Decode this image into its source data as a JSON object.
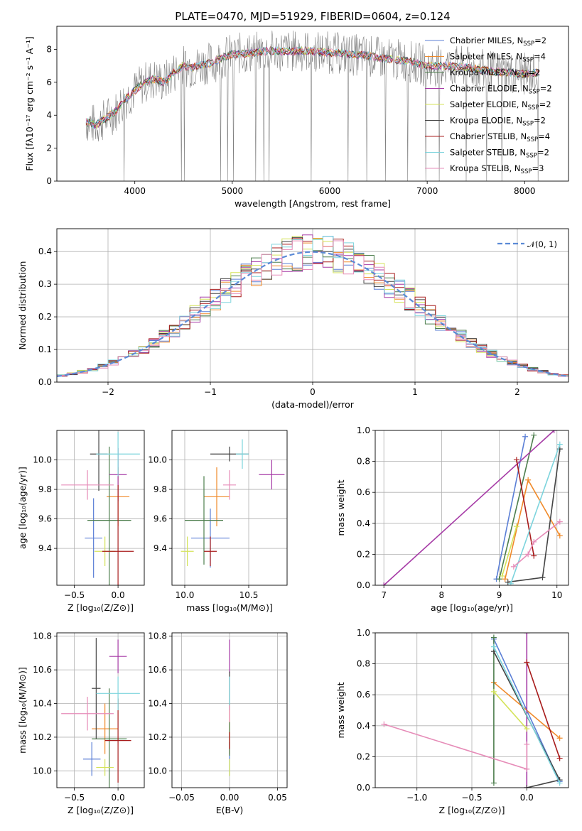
{
  "title": "PLATE=0470, MJD=51929, FIBERID=0604, z=0.124",
  "colors": [
    "#5b7fd6",
    "#f08a2a",
    "#4d7e4d",
    "#a63aa6",
    "#d4e35a",
    "#444444",
    "#a81c1c",
    "#7dd4dd",
    "#e68cb8"
  ],
  "chart_data": [
    {
      "id": "spectrum",
      "type": "line",
      "xlabel": "wavelength [Angstrom, rest frame]",
      "ylabel": "Flux [fλ10⁻¹⁷ erg cm⁻² s⁻¹ A⁻¹]",
      "xlim": [
        3200,
        8450
      ],
      "ylim": [
        0,
        9.4
      ],
      "xticks": [
        4000,
        5000,
        6000,
        7000,
        8000
      ],
      "yticks": [
        0,
        2,
        4,
        6,
        8
      ],
      "grid": false,
      "legend": "top-right",
      "legend_entries": [
        {
          "label": "Chabrier MILES, N",
          "sub": "SSP",
          "tail": "=2"
        },
        {
          "label": "Salpeter MILES, N",
          "sub": "SSP",
          "tail": "=4"
        },
        {
          "label": "Kroupa MILES, N",
          "sub": "SSP",
          "tail": "=2"
        },
        {
          "label": "Chabrier ELODIE, N",
          "sub": "SSP",
          "tail": "=2"
        },
        {
          "label": "Salpeter ELODIE, N",
          "sub": "SSP",
          "tail": "=2"
        },
        {
          "label": "Kroupa ELODIE, N",
          "sub": "SSP",
          "tail": "=2"
        },
        {
          "label": "Chabrier STELIB, N",
          "sub": "SSP",
          "tail": "=4"
        },
        {
          "label": "Salpeter STELIB, N",
          "sub": "SSP",
          "tail": "=2"
        },
        {
          "label": "Kroupa STELIB, N",
          "sub": "SSP",
          "tail": "=3"
        }
      ],
      "data_x": [
        3500,
        3600,
        3700,
        3800,
        3900,
        4000,
        4100,
        4200,
        4300,
        4400,
        4500,
        4600,
        4700,
        4800,
        4900,
        5000,
        5200,
        5400,
        5600,
        5800,
        6000,
        6200,
        6400,
        6600,
        6800,
        7000,
        7200,
        7400,
        7600,
        7800,
        8000,
        8150
      ],
      "data_y": [
        3.6,
        3.4,
        3.8,
        4.2,
        5.0,
        5.5,
        6.0,
        6.2,
        6.0,
        6.6,
        7.0,
        6.9,
        7.1,
        7.2,
        7.5,
        7.7,
        7.8,
        7.9,
        7.9,
        7.9,
        7.8,
        7.7,
        7.6,
        7.4,
        7.3,
        7.0,
        7.0,
        6.9,
        6.7,
        6.6,
        6.5,
        6.6
      ]
    },
    {
      "id": "residuals",
      "type": "histogram",
      "xlabel": "(data-model)/error",
      "ylabel": "Normed distribution",
      "xlim": [
        -2.5,
        2.5
      ],
      "ylim": [
        0,
        0.47
      ],
      "xticks": [
        -2,
        -1,
        0,
        1,
        2
      ],
      "yticks": [
        0.0,
        0.1,
        0.2,
        0.3,
        0.4
      ],
      "grid": true,
      "legend": "top-right",
      "curve_label": "𝒩(0, 1)",
      "bin_width": 0.1
    },
    {
      "id": "age-vs-Z",
      "type": "errorbar",
      "xlabel": "Z [log₁₀(Z/Z⊙)]",
      "ylabel": "age  [log₁₀(age/yr)]",
      "xlim": [
        -0.7,
        0.3
      ],
      "ylim": [
        9.15,
        10.2
      ],
      "xticks": [
        -0.5,
        0.0
      ],
      "yticks": [
        9.4,
        9.6,
        9.8,
        10.0
      ],
      "points": [
        {
          "x": -0.28,
          "xe": 0.1,
          "y": 9.47,
          "ye": 0.27
        },
        {
          "x": 0.0,
          "xe": 0.13,
          "y": 9.75,
          "ye": 0.2
        },
        {
          "x": -0.1,
          "xe": 0.25,
          "y": 9.59,
          "ye": 0.5
        },
        {
          "x": 0.0,
          "xe": 0.1,
          "y": 9.9,
          "ye": 0.18
        },
        {
          "x": -0.15,
          "xe": 0.12,
          "y": 9.38,
          "ye": 0.1
        },
        {
          "x": -0.22,
          "xe": 0.1,
          "y": 10.04,
          "ye": 0.25
        },
        {
          "x": 0.0,
          "xe": 0.18,
          "y": 9.38,
          "ye": 0.45
        },
        {
          "x": 0.0,
          "xe": 0.25,
          "y": 10.04,
          "ye": 0.15
        },
        {
          "x": -0.35,
          "xe": 0.3,
          "y": 9.83,
          "ye": 0.1
        }
      ]
    },
    {
      "id": "age-vs-mass",
      "type": "errorbar",
      "xlabel": "mass [log₁₀(M/M⊙)]",
      "ylabel": "",
      "xlim": [
        9.9,
        10.8
      ],
      "ylim": [
        9.15,
        10.2
      ],
      "xticks": [
        10.0,
        10.5
      ],
      "yticks": [
        9.4,
        9.6,
        9.8,
        10.0
      ],
      "points": [
        {
          "x": 10.2,
          "xe": 0.15,
          "y": 9.47,
          "ye": 0.2
        },
        {
          "x": 10.25,
          "xe": 0.1,
          "y": 9.75,
          "ye": 0.2
        },
        {
          "x": 10.15,
          "xe": 0.15,
          "y": 9.59,
          "ye": 0.3
        },
        {
          "x": 10.68,
          "xe": 0.1,
          "y": 9.9,
          "ye": 0.1
        },
        {
          "x": 10.02,
          "xe": 0.05,
          "y": 9.38,
          "ye": 0.1
        },
        {
          "x": 10.35,
          "xe": 0.15,
          "y": 10.04,
          "ye": 0.05
        },
        {
          "x": 10.2,
          "xe": 0.05,
          "y": 9.38,
          "ye": 0.1
        },
        {
          "x": 10.45,
          "xe": 0.05,
          "y": 10.04,
          "ye": 0.1
        },
        {
          "x": 10.35,
          "xe": 0.05,
          "y": 9.83,
          "ye": 0.1
        }
      ]
    },
    {
      "id": "weight-vs-age",
      "type": "line",
      "xlabel": "age  [log₁₀(age/yr)]",
      "ylabel": "mass weight",
      "xlim": [
        6.85,
        10.2
      ],
      "ylim": [
        0,
        1.0
      ],
      "xticks": [
        7,
        8,
        9,
        10
      ],
      "yticks": [
        0.0,
        0.2,
        0.4,
        0.6,
        0.8,
        1.0
      ],
      "series": [
        {
          "x": [
            8.95,
            9.45
          ],
          "y": [
            0.04,
            0.96
          ]
        },
        {
          "x": [
            9.1,
            9.5,
            10.05
          ],
          "y": [
            0.04,
            0.68,
            0.32
          ]
        },
        {
          "x": [
            9.0,
            9.6
          ],
          "y": [
            0.04,
            0.97
          ]
        },
        {
          "x": [
            7.0,
            9.95
          ],
          "y": [
            0.0,
            1.0
          ]
        },
        {
          "x": [
            9.05,
            9.3
          ],
          "y": [
            0.06,
            0.38
          ]
        },
        {
          "x": [
            9.15,
            9.75,
            10.05
          ],
          "y": [
            0.02,
            0.05,
            0.88
          ]
        },
        {
          "x": [
            9.3,
            9.6
          ],
          "y": [
            0.81,
            0.19
          ]
        },
        {
          "x": [
            9.2,
            10.05
          ],
          "y": [
            0.01,
            0.91
          ]
        },
        {
          "x": [
            9.25,
            9.5,
            9.6,
            10.05
          ],
          "y": [
            0.12,
            0.2,
            0.28,
            0.41
          ]
        }
      ]
    },
    {
      "id": "mass-vs-Z",
      "type": "errorbar",
      "xlabel": "Z [log₁₀(Z/Z⊙)]",
      "ylabel": "mass [log₁₀(M/M⊙)]",
      "xlim": [
        -0.7,
        0.3
      ],
      "ylim": [
        9.9,
        10.82
      ],
      "xticks": [
        -0.5,
        0.0
      ],
      "yticks": [
        10.0,
        10.2,
        10.4,
        10.6,
        10.8
      ],
      "points": [
        {
          "x": -0.3,
          "xe": 0.1,
          "y": 10.07,
          "ye": 0.1
        },
        {
          "x": -0.15,
          "xe": 0.15,
          "y": 10.25,
          "ye": 0.15
        },
        {
          "x": -0.1,
          "xe": 0.2,
          "y": 10.19,
          "ye": 0.3
        },
        {
          "x": 0.0,
          "xe": 0.1,
          "y": 10.68,
          "ye": 0.1
        },
        {
          "x": -0.15,
          "xe": 0.1,
          "y": 10.02,
          "ye": 0.05
        },
        {
          "x": -0.25,
          "xe": 0.05,
          "y": 10.49,
          "ye": 0.3
        },
        {
          "x": 0.0,
          "xe": 0.15,
          "y": 10.18,
          "ye": 0.25
        },
        {
          "x": 0.0,
          "xe": 0.25,
          "y": 10.46,
          "ye": 0.1
        },
        {
          "x": -0.35,
          "xe": 0.3,
          "y": 10.34,
          "ye": 0.1
        }
      ]
    },
    {
      "id": "mass-vs-ebv",
      "type": "errorbar",
      "xlabel": "E(B-V)",
      "ylabel": "",
      "xlim": [
        -0.06,
        0.06
      ],
      "ylim": [
        9.9,
        10.82
      ],
      "xticks": [
        -0.05,
        0.0,
        0.05
      ],
      "yticks": [
        10.0,
        10.2,
        10.4,
        10.6,
        10.8
      ],
      "points": [
        {
          "x": 0.0,
          "xe": 0.0,
          "y": 10.07,
          "ye": 0.1
        },
        {
          "x": 0.0,
          "xe": 0.0,
          "y": 10.25,
          "ye": 0.15
        },
        {
          "x": 0.0,
          "xe": 0.0,
          "y": 10.19,
          "ye": 0.1
        },
        {
          "x": 0.0,
          "xe": 0.0,
          "y": 10.68,
          "ye": 0.1
        },
        {
          "x": 0.0,
          "xe": 0.0,
          "y": 10.02,
          "ye": 0.05
        },
        {
          "x": 0.0,
          "xe": 0.0,
          "y": 10.49,
          "ye": 0.1
        },
        {
          "x": 0.0,
          "xe": 0.0,
          "y": 10.18,
          "ye": 0.05
        },
        {
          "x": 0.0,
          "xe": 0.0,
          "y": 10.46,
          "ye": 0.1
        },
        {
          "x": 0.0,
          "xe": 0.0,
          "y": 10.34,
          "ye": 0.05
        }
      ]
    },
    {
      "id": "weight-vs-Z",
      "type": "line",
      "xlabel": "Z [log₁₀(Z/Z⊙)]",
      "ylabel": "mass weight",
      "xlim": [
        -1.38,
        0.38
      ],
      "ylim": [
        0,
        1.0
      ],
      "xticks": [
        -1.0,
        -0.5,
        0.0
      ],
      "yticks": [
        0.0,
        0.2,
        0.4,
        0.6,
        0.8,
        1.0
      ],
      "series": [
        {
          "x": [
            -0.3,
            0.3
          ],
          "y": [
            0.96,
            0.04
          ]
        },
        {
          "x": [
            -0.3,
            0.3
          ],
          "y": [
            0.68,
            0.32
          ]
        },
        {
          "x": [
            -0.3,
            -0.3
          ],
          "y": [
            0.03,
            0.97
          ]
        },
        {
          "x": [
            0.0,
            0.0
          ],
          "y": [
            0.0,
            1.0
          ]
        },
        {
          "x": [
            -0.3,
            0.0
          ],
          "y": [
            0.62,
            0.38
          ]
        },
        {
          "x": [
            0.0,
            0.3,
            -0.3
          ],
          "y": [
            0.0,
            0.05,
            0.88
          ]
        },
        {
          "x": [
            0.0,
            0.3
          ],
          "y": [
            0.81,
            0.19
          ]
        },
        {
          "x": [
            -0.3,
            0.3
          ],
          "y": [
            0.91,
            0.03
          ]
        },
        {
          "x": [
            -1.3,
            0.0,
            0.0
          ],
          "y": [
            0.41,
            0.12,
            0.28
          ]
        }
      ]
    }
  ]
}
